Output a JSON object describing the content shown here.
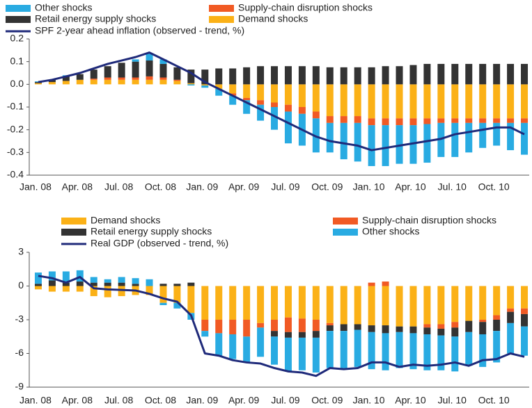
{
  "chart_data": [
    {
      "type": "bar",
      "stacked": true,
      "categories": [
        "Jan. 08",
        null,
        null,
        "Apr. 08",
        null,
        null,
        "Jul. 08",
        null,
        null,
        "Oct. 08",
        null,
        null,
        "Jan. 09",
        null,
        null,
        "Apr. 09",
        null,
        null,
        "Jul. 09",
        null,
        null,
        "Oct. 09",
        null,
        null,
        "Jan. 10",
        null,
        null,
        "Apr. 10",
        null,
        null,
        "Jul. 10",
        null,
        null,
        "Oct. 10",
        null,
        null
      ],
      "series": [
        {
          "name": "Demand shocks",
          "color": "#fbb117",
          "values": [
            0.005,
            0.01,
            0.015,
            0.02,
            0.02,
            0.02,
            0.02,
            0.02,
            0.02,
            0.02,
            0.015,
            0.005,
            -0.005,
            -0.02,
            -0.04,
            -0.06,
            -0.07,
            -0.08,
            -0.09,
            -0.1,
            -0.12,
            -0.14,
            -0.14,
            -0.14,
            -0.15,
            -0.15,
            -0.15,
            -0.15,
            -0.15,
            -0.15,
            -0.15,
            -0.15,
            -0.15,
            -0.15,
            -0.15,
            -0.15
          ]
        },
        {
          "name": "Supply-chain disruption shocks",
          "color": "#f15a24",
          "values": [
            0,
            0,
            0,
            0,
            0.005,
            0.01,
            0.01,
            0.01,
            0.015,
            0.01,
            0.005,
            0,
            0,
            0,
            -0.01,
            -0.01,
            -0.02,
            -0.02,
            -0.03,
            -0.03,
            -0.03,
            -0.03,
            -0.03,
            -0.03,
            -0.03,
            -0.03,
            -0.03,
            -0.03,
            -0.025,
            -0.02,
            -0.02,
            -0.02,
            -0.02,
            -0.02,
            -0.02,
            -0.02
          ]
        },
        {
          "name": "Retail energy supply shocks",
          "color": "#333333",
          "values": [
            0.005,
            0.01,
            0.02,
            0.025,
            0.04,
            0.05,
            0.065,
            0.07,
            0.07,
            0.06,
            0.055,
            0.06,
            0.065,
            0.07,
            0.07,
            0.075,
            0.08,
            0.08,
            0.08,
            0.08,
            0.08,
            0.075,
            0.075,
            0.075,
            0.075,
            0.08,
            0.08,
            0.085,
            0.09,
            0.09,
            0.09,
            0.09,
            0.09,
            0.09,
            0.09,
            0.09
          ]
        },
        {
          "name": "Other shocks",
          "color": "#29abe2",
          "values": [
            0.003,
            0,
            0.005,
            0,
            0,
            0,
            0,
            0.01,
            0.03,
            0.02,
            0,
            -0.005,
            -0.01,
            -0.03,
            -0.04,
            -0.06,
            -0.07,
            -0.1,
            -0.14,
            -0.14,
            -0.15,
            -0.13,
            -0.16,
            -0.17,
            -0.18,
            -0.18,
            -0.17,
            -0.17,
            -0.17,
            -0.15,
            -0.15,
            -0.13,
            -0.11,
            -0.1,
            -0.12,
            -0.14
          ]
        },
        {
          "name": "SPF 2-year ahead inflation (observed - trend, %)",
          "type": "line",
          "color": "#1f2a7a",
          "values": [
            0.01,
            0.02,
            0.035,
            0.05,
            0.07,
            0.09,
            0.105,
            0.12,
            0.14,
            0.11,
            0.08,
            0.05,
            0.01,
            -0.02,
            -0.05,
            -0.08,
            -0.11,
            -0.14,
            -0.17,
            -0.2,
            -0.23,
            -0.25,
            -0.26,
            -0.27,
            -0.29,
            -0.28,
            -0.27,
            -0.26,
            -0.25,
            -0.24,
            -0.22,
            -0.21,
            -0.2,
            -0.19,
            -0.19,
            -0.22
          ]
        }
      ],
      "ylim": [
        -0.4,
        0.2
      ],
      "yticks": [
        -0.4,
        -0.3,
        -0.2,
        -0.1,
        {
          "value": 0,
          "label": "0.0"
        },
        0.1,
        0.2
      ]
    },
    {
      "type": "bar",
      "stacked": true,
      "categories": [
        "Jan. 08",
        null,
        null,
        "Apr. 08",
        null,
        null,
        "Jul. 08",
        null,
        null,
        "Oct. 08",
        null,
        null,
        "Jan. 09",
        null,
        null,
        "Apr. 09",
        null,
        null,
        "Jul. 09",
        null,
        null,
        "Oct. 09",
        null,
        null,
        "Jan. 10",
        null,
        null,
        "Apr. 10",
        null,
        null,
        "Jul. 10",
        null,
        null,
        "Oct. 10",
        null,
        null
      ],
      "series": [
        {
          "name": "Demand shocks",
          "color": "#fbb117",
          "values": [
            -0.3,
            -0.5,
            -0.5,
            -0.5,
            -0.9,
            -1.0,
            -0.9,
            -0.8,
            -0.8,
            -1.5,
            -1.5,
            -2.4,
            -3.0,
            -3.0,
            -3.0,
            -3.0,
            -3.3,
            -3.0,
            -2.8,
            -2.9,
            -3.0,
            -3.3,
            -3.4,
            -3.4,
            -3.5,
            -3.5,
            -3.6,
            -3.6,
            -3.4,
            -3.4,
            -3.2,
            -3.1,
            -3.0,
            -2.6,
            -2.0,
            -2.0
          ]
        },
        {
          "name": "Supply-chain disruption shocks",
          "color": "#f15a24",
          "values": [
            0,
            0,
            0,
            0,
            0,
            0,
            0,
            0,
            0,
            0,
            0,
            0,
            -1.0,
            -1.2,
            -1.3,
            -1.5,
            -0.4,
            -1.0,
            -1.3,
            -1.2,
            -1.0,
            -0.2,
            0,
            0,
            0.3,
            0.4,
            0,
            0,
            -0.3,
            -0.4,
            -0.5,
            0,
            -0.2,
            -0.4,
            -0.3,
            -0.5
          ]
        },
        {
          "name": "Retail energy supply shocks",
          "color": "#333333",
          "values": [
            0.2,
            0.5,
            0.3,
            0.4,
            0.3,
            0.3,
            0.3,
            0.2,
            0,
            0.2,
            0.2,
            0.3,
            0,
            0,
            0,
            0,
            0,
            -0.5,
            -0.5,
            -0.5,
            -0.6,
            -0.5,
            -0.6,
            -0.5,
            -0.6,
            -0.7,
            -0.5,
            -0.6,
            -0.6,
            -0.6,
            -0.8,
            -1.0,
            -1.1,
            -1.0,
            -1.0,
            -1.1
          ]
        },
        {
          "name": "Other shocks",
          "color": "#29abe2",
          "values": [
            1.0,
            0.8,
            1.0,
            1.0,
            0.5,
            0.3,
            0.5,
            0.5,
            0.6,
            -0.2,
            -0.5,
            -0.6,
            -0.5,
            -2.0,
            -2.2,
            -2.3,
            -2.6,
            -2.5,
            -3.0,
            -2.9,
            -3.1,
            -3.3,
            -3.3,
            -3.3,
            -3.3,
            -3.3,
            -3.2,
            -3.2,
            -3.2,
            -3.1,
            -3.1,
            -3.0,
            -2.9,
            -2.8,
            -2.7,
            -2.6
          ]
        },
        {
          "name": "Real GDP (observed - trend, %)",
          "type": "line",
          "color": "#1f2a7a",
          "values": [
            0.9,
            0.7,
            0.3,
            0.8,
            -0.2,
            -0.3,
            -0.35,
            -0.4,
            -0.7,
            -1.1,
            -1.4,
            -2.6,
            -6.0,
            -6.2,
            -6.6,
            -6.8,
            -6.9,
            -7.3,
            -7.6,
            -7.7,
            -8.0,
            -7.3,
            -7.4,
            -7.3,
            -6.8,
            -6.8,
            -7.2,
            -7.0,
            -7.1,
            -7.0,
            -6.8,
            -7.1,
            -6.6,
            -6.5,
            -6.0,
            -6.3
          ]
        }
      ],
      "ylim": [
        -9,
        3
      ],
      "yticks": [
        -9,
        -6,
        -3,
        0,
        3
      ]
    }
  ]
}
